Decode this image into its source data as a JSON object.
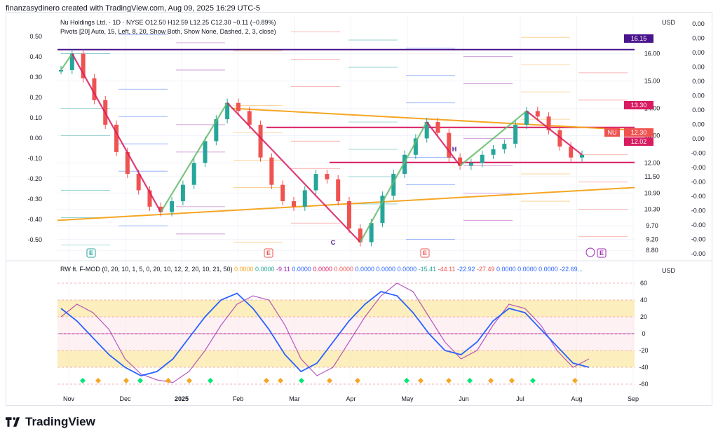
{
  "header": {
    "caption": "finanzasydinero created with TradingView.com, Aug 09, 2025 16:29 UTC-5"
  },
  "legend": {
    "main": "Nu Holdings Ltd. · 1D · NYSE  O12.50  H12.59  L12.25  C12.30  −0.11 (−0.89%)",
    "pivots": "Pivots [20] Auto, 15, Left, 8, 20, Show Both, Show None, Dashed, 2, 3, close)",
    "indicator_name": "RW ft. F-MOD (0, 20, 10, 1, 5, 0, 20, 10, 12, 2, 20, 10, 21, 50)",
    "indicator_values": [
      "0.0000",
      "0.0000",
      "-9.11",
      "0.0000",
      "0.0000",
      "0.0000",
      "0.0000",
      "0.0000",
      "0.0000",
      "-15.41",
      "-44.11",
      "-22.92",
      "-27.49",
      "0.0000",
      "0.0000",
      "0.0000",
      "-22.69..."
    ]
  },
  "currency": "USD",
  "price_tags": {
    "high": "16.15",
    "mid": "13.30",
    "last": "12.30",
    "level": "12.02",
    "ticker": "NU"
  },
  "colors": {
    "up": "#26a69a",
    "down": "#ef5350",
    "green_line": "#66bb6a",
    "red_line": "#d81b60",
    "orange": "#f5a623",
    "blue": "#2962ff",
    "purple": "#9c27b0"
  },
  "icons": [
    "earnings-marker-icon",
    "dividend-marker-icon",
    "tradingview-logo-icon"
  ],
  "chart_data": [
    {
      "type": "line",
      "title": "",
      "series_note": "NU daily candles approximated as close",
      "x": [
        "Nov",
        "Dec",
        "2025",
        "Feb",
        "Mar",
        "Apr",
        "May",
        "Jun",
        "Jul",
        "Aug",
        "Sep"
      ],
      "ylim": [
        8.6,
        17.4
      ],
      "right_ticks": [
        "16.00",
        "15.00",
        "14.00",
        "13.00",
        "12.00",
        "11.50",
        "10.90",
        "10.30",
        "9.70",
        "9.20",
        "8.80"
      ],
      "left_ticks": [
        "0.50",
        "0.40",
        "0.30",
        "0.20",
        "0.10",
        "0.00",
        "-0.10",
        "-0.20",
        "-0.30",
        "-0.40",
        "-0.50"
      ],
      "far_right_ticks": [
        "0.00",
        "0.00",
        "0.00",
        "0.00",
        "0.00",
        "0.00",
        "0.00",
        "0.00",
        "0.00",
        "-0.00",
        "-0.00",
        "-0.00",
        "-0.00",
        "-0.00",
        "-0.00",
        "-0.00",
        "-0.00"
      ],
      "closes": [
        15.4,
        16.0,
        15.1,
        14.3,
        13.4,
        12.4,
        11.6,
        11.0,
        10.4,
        10.2,
        10.6,
        11.2,
        12.0,
        12.8,
        13.6,
        14.2,
        13.9,
        13.4,
        12.2,
        11.2,
        10.6,
        10.4,
        11.0,
        11.6,
        11.4,
        10.6,
        9.6,
        9.1,
        9.8,
        10.8,
        11.6,
        12.3,
        12.9,
        13.5,
        13.1,
        12.2,
        11.9,
        12.0,
        12.3,
        12.5,
        12.7,
        13.4,
        13.9,
        13.7,
        13.2,
        12.6,
        12.2,
        12.3
      ],
      "annotations": [
        "E",
        "E",
        "C",
        "E",
        "E",
        "H"
      ]
    },
    {
      "type": "line",
      "title": "",
      "ylim": [
        -70,
        70
      ],
      "y_ticks": [
        "60",
        "40",
        "20",
        "0",
        "-20",
        "-40",
        "-60"
      ],
      "series": [
        {
          "values": [
            20,
            35,
            25,
            5,
            -30,
            -48,
            -55,
            -58,
            -45,
            -20,
            10,
            35,
            45,
            40,
            10,
            -30,
            -50,
            -40,
            -10,
            20,
            45,
            60,
            50,
            20,
            -10,
            -30,
            -20,
            10,
            35,
            30,
            10,
            -20,
            -40,
            -30
          ]
        },
        {
          "values": [
            30,
            15,
            -5,
            -25,
            -40,
            -50,
            -45,
            -30,
            -5,
            20,
            40,
            48,
            30,
            5,
            -25,
            -45,
            -35,
            -10,
            15,
            35,
            50,
            45,
            25,
            0,
            -20,
            -25,
            -10,
            15,
            30,
            25,
            5,
            -15,
            -35,
            -40
          ]
        }
      ]
    }
  ]
}
